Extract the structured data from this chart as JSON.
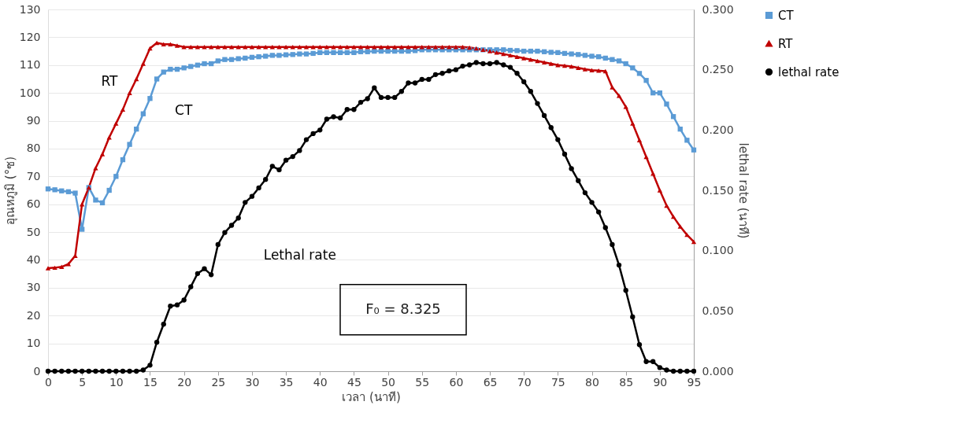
{
  "chart_data": {
    "type": "line",
    "xlabel": "เวลา (นาที)",
    "ylabel": "อุณหภูมิ (°ซ)",
    "y2label": "lethal rate (นาที)",
    "xlim": [
      0,
      95
    ],
    "xticks": [
      0,
      5,
      10,
      15,
      20,
      25,
      30,
      35,
      40,
      45,
      50,
      55,
      60,
      65,
      70,
      75,
      80,
      85,
      90,
      95
    ],
    "ylim": [
      0,
      130
    ],
    "yticks": [
      0,
      10,
      20,
      30,
      40,
      50,
      60,
      70,
      80,
      90,
      100,
      110,
      120,
      130
    ],
    "y2lim": [
      0,
      0.3
    ],
    "y2ticks": [
      {
        "value": 0,
        "label": "0.000"
      },
      {
        "value": 0.05,
        "label": "0.050"
      },
      {
        "value": 0.1,
        "label": "0.100"
      },
      {
        "value": 0.15,
        "label": "0.150"
      },
      {
        "value": 0.2,
        "label": "0.200"
      },
      {
        "value": 0.25,
        "label": "0.250"
      },
      {
        "value": 0.3,
        "label": "0.300"
      }
    ],
    "x": [
      0,
      1,
      2,
      3,
      4,
      5,
      6,
      7,
      8,
      9,
      10,
      11,
      12,
      13,
      14,
      15,
      16,
      17,
      18,
      19,
      20,
      21,
      22,
      23,
      24,
      25,
      26,
      27,
      28,
      29,
      30,
      31,
      32,
      33,
      34,
      35,
      36,
      37,
      38,
      39,
      40,
      41,
      42,
      43,
      44,
      45,
      46,
      47,
      48,
      49,
      50,
      51,
      52,
      53,
      54,
      55,
      56,
      57,
      58,
      59,
      60,
      61,
      62,
      63,
      64,
      65,
      66,
      67,
      68,
      69,
      70,
      71,
      72,
      73,
      74,
      75,
      76,
      77,
      78,
      79,
      80,
      81,
      82,
      83,
      84,
      85,
      86,
      87,
      88,
      89,
      90,
      91,
      92,
      93,
      94,
      95
    ],
    "grid": "y",
    "legend": "right",
    "line_style": "solid",
    "series": [
      {
        "name": "CT",
        "color": "#5b9bd5",
        "marker": "square",
        "values": [
          65.5,
          65.2,
          64.8,
          64.5,
          64,
          51,
          66,
          61.5,
          60.5,
          65,
          70,
          76,
          81.5,
          87,
          92.5,
          98,
          105,
          107.5,
          108.5,
          108.5,
          109,
          109.5,
          110,
          110.5,
          110.5,
          111.5,
          112,
          112,
          112.3,
          112.5,
          112.8,
          113,
          113.2,
          113.5,
          113.5,
          113.7,
          113.8,
          114,
          114,
          114.2,
          114.5,
          114.5,
          114.5,
          114.5,
          114.5,
          114.5,
          114.8,
          114.8,
          115,
          115,
          115,
          115,
          115,
          115,
          115.2,
          115.5,
          115.5,
          115.5,
          115.5,
          115.5,
          115.5,
          115.5,
          115.5,
          115.5,
          115.5,
          115.5,
          115.5,
          115.5,
          115.3,
          115.2,
          115,
          115,
          115,
          114.8,
          114.6,
          114.5,
          114.2,
          114,
          113.8,
          113.5,
          113.2,
          113,
          112.5,
          112,
          111.5,
          110.5,
          109,
          107,
          104.5,
          100,
          100,
          96,
          91.5,
          87,
          83,
          79.5
        ]
      },
      {
        "name": "RT",
        "color": "#c00000",
        "marker": "triangle",
        "values": [
          37,
          37.2,
          37.5,
          38.5,
          41.5,
          60,
          66,
          73,
          78,
          84,
          89,
          94,
          100,
          105,
          110.5,
          116,
          118,
          117.5,
          117.5,
          117,
          116.5,
          116.5,
          116.5,
          116.5,
          116.5,
          116.5,
          116.5,
          116.5,
          116.5,
          116.5,
          116.5,
          116.5,
          116.5,
          116.5,
          116.5,
          116.5,
          116.5,
          116.5,
          116.5,
          116.5,
          116.5,
          116.5,
          116.5,
          116.5,
          116.5,
          116.5,
          116.5,
          116.5,
          116.5,
          116.5,
          116.5,
          116.5,
          116.5,
          116.5,
          116.5,
          116.5,
          116.5,
          116.5,
          116.5,
          116.5,
          116.5,
          116.5,
          116.3,
          116,
          115.5,
          115,
          114.5,
          114,
          113.5,
          113,
          112.5,
          112,
          111.5,
          111,
          110.5,
          110,
          109.8,
          109.5,
          109,
          108.5,
          108.2,
          108,
          107.8,
          102,
          99,
          95,
          89,
          83,
          77,
          71,
          65,
          59.5,
          55.5,
          52,
          49,
          46.5
        ]
      },
      {
        "name": "lethal rate",
        "color": "#000000",
        "marker": "circle",
        "axis": "y2",
        "values": [
          0,
          0,
          0,
          0,
          0,
          0,
          0,
          0,
          0,
          0,
          0,
          0,
          0,
          0,
          0.001,
          0.005,
          0.024,
          0.039,
          0.054,
          0.055,
          0.059,
          0.07,
          0.081,
          0.085,
          0.08,
          0.105,
          0.115,
          0.121,
          0.127,
          0.14,
          0.145,
          0.152,
          0.159,
          0.17,
          0.167,
          0.175,
          0.178,
          0.183,
          0.192,
          0.197,
          0.2,
          0.209,
          0.211,
          0.21,
          0.217,
          0.217,
          0.223,
          0.226,
          0.235,
          0.227,
          0.227,
          0.227,
          0.232,
          0.239,
          0.239,
          0.242,
          0.242,
          0.246,
          0.247,
          0.249,
          0.25,
          0.253,
          0.254,
          0.256,
          0.255,
          0.255,
          0.256,
          0.254,
          0.252,
          0.247,
          0.24,
          0.232,
          0.222,
          0.212,
          0.202,
          0.192,
          0.18,
          0.168,
          0.158,
          0.148,
          0.14,
          0.132,
          0.119,
          0.105,
          0.088,
          0.067,
          0.045,
          0.022,
          0.008,
          0.008,
          0.003,
          0.001,
          0,
          0,
          0,
          0
        ]
      }
    ],
    "annotations": [
      "RT",
      "CT",
      "Lethal rate",
      "F₀ = 8.325"
    ]
  }
}
